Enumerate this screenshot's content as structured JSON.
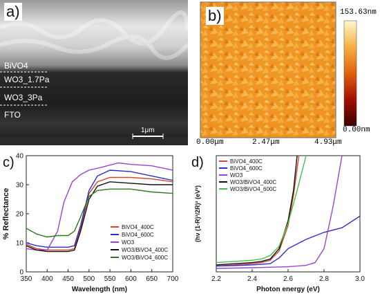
{
  "panel_a": {
    "label": "a)",
    "layers": [
      "BiVO4",
      "WO3_1.7Pa",
      "WO3_3Pa",
      "FTO"
    ],
    "scalebar": "1μm"
  },
  "panel_b": {
    "label": "b)",
    "x_ticks": [
      "0.00μm",
      "2.47μm",
      "4.93μm"
    ],
    "colorbar_max": "153.63nm",
    "colorbar_min": "0.00nm"
  },
  "chart_data": [
    {
      "panel": "c)",
      "type": "line",
      "xlabel": "Wavelength (nm)",
      "ylabel": "% Reflectance",
      "xlim": [
        350,
        700
      ],
      "ylim": [
        0,
        40
      ],
      "x_ticks": [
        350,
        400,
        450,
        500,
        550,
        600,
        650,
        700
      ],
      "y_ticks": [
        0,
        10,
        20,
        30,
        40
      ],
      "legend_position": "bottom-right",
      "series": [
        {
          "name": "BiVO4_400C",
          "color": "#d0452b",
          "x": [
            350,
            375,
            400,
            425,
            450,
            465,
            480,
            500,
            520,
            550,
            600,
            650,
            700
          ],
          "y": [
            9.5,
            8,
            7.5,
            7.5,
            7.5,
            8,
            15,
            27,
            31,
            32.5,
            32.5,
            32,
            31
          ]
        },
        {
          "name": "BiVO4_600C",
          "color": "#2b2bcf",
          "x": [
            350,
            375,
            400,
            425,
            450,
            465,
            480,
            500,
            520,
            550,
            600,
            650,
            700
          ],
          "y": [
            10,
            9,
            8.5,
            8.5,
            8.5,
            9,
            16,
            28,
            33,
            35,
            34.5,
            33,
            31.5
          ]
        },
        {
          "name": "WO3",
          "color": "#a040d0",
          "x": [
            350,
            375,
            400,
            425,
            440,
            460,
            480,
            500,
            530,
            570,
            600,
            650,
            700
          ],
          "y": [
            8,
            7.5,
            7.5,
            14,
            24,
            31,
            33.5,
            35,
            36,
            37.5,
            37,
            36.5,
            35
          ]
        },
        {
          "name": "WO3/BiVO4_400C",
          "color": "#111111",
          "x": [
            350,
            375,
            400,
            425,
            450,
            465,
            480,
            500,
            520,
            550,
            600,
            650,
            700
          ],
          "y": [
            9,
            7.5,
            7,
            7,
            7,
            7.5,
            14,
            25,
            29.5,
            31,
            30.5,
            30,
            30
          ]
        },
        {
          "name": "WO3/BiVO4_600C",
          "color": "#2d7a1e",
          "x": [
            350,
            375,
            400,
            425,
            450,
            465,
            480,
            500,
            520,
            550,
            600,
            650,
            700
          ],
          "y": [
            15,
            13,
            12,
            12.5,
            12.5,
            14,
            19,
            26,
            28,
            28.5,
            28.5,
            27.5,
            27
          ]
        }
      ]
    },
    {
      "panel": "d)",
      "type": "line",
      "xlabel": "Photon energy (eV)",
      "ylabel": "(hν (1-R)²/2R)² (eV²)",
      "xlim": [
        2.2,
        3.0
      ],
      "ylim": [
        0,
        50
      ],
      "x_ticks": [
        2.2,
        2.4,
        2.6,
        2.8,
        3.0
      ],
      "legend_position": "top-left",
      "series": [
        {
          "name": "BiVO4_400C",
          "color": "#d0452b",
          "x": [
            2.2,
            2.3,
            2.4,
            2.45,
            2.5,
            2.55,
            2.6,
            2.63,
            2.66
          ],
          "y": [
            2.5,
            3,
            3.5,
            4,
            5,
            9,
            20,
            33,
            50
          ]
        },
        {
          "name": "BiVO4_600C",
          "color": "#2b2bcf",
          "x": [
            2.2,
            2.3,
            2.4,
            2.5,
            2.55,
            2.6,
            2.7,
            2.8,
            2.9,
            3.0
          ],
          "y": [
            2.5,
            2.7,
            3,
            3.5,
            6,
            10,
            14,
            17,
            19,
            24
          ]
        },
        {
          "name": "WO3",
          "color": "#a040d0",
          "x": [
            2.2,
            2.4,
            2.6,
            2.7,
            2.75,
            2.8,
            2.85,
            2.9
          ],
          "y": [
            1.5,
            1.8,
            2.2,
            2.8,
            4,
            10,
            28,
            50
          ]
        },
        {
          "name": "WO3/BiVO4_400C",
          "color": "#111111",
          "x": [
            2.2,
            2.3,
            2.4,
            2.45,
            2.5,
            2.55,
            2.6,
            2.63,
            2.65
          ],
          "y": [
            3,
            3.5,
            4,
            4.5,
            5.5,
            10,
            22,
            35,
            50
          ]
        },
        {
          "name": "WO3/BiVO4_600C",
          "color": "#46c04a",
          "x": [
            2.2,
            2.3,
            2.4,
            2.45,
            2.5,
            2.55,
            2.6,
            2.65,
            2.7
          ],
          "y": [
            4,
            4.5,
            5,
            5.5,
            7,
            11,
            21,
            35,
            50
          ]
        }
      ]
    }
  ]
}
